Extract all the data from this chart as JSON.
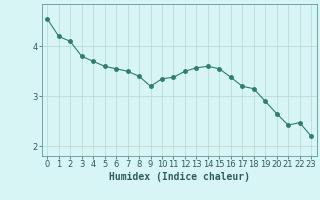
{
  "x": [
    0,
    1,
    2,
    3,
    4,
    5,
    6,
    7,
    8,
    9,
    10,
    11,
    12,
    13,
    14,
    15,
    16,
    17,
    18,
    19,
    20,
    21,
    22,
    23
  ],
  "y": [
    4.55,
    4.2,
    4.1,
    3.8,
    3.7,
    3.6,
    3.55,
    3.5,
    3.4,
    3.2,
    3.35,
    3.38,
    3.5,
    3.57,
    3.6,
    3.55,
    3.38,
    3.2,
    3.15,
    2.9,
    2.65,
    2.42,
    2.47,
    2.2
  ],
  "line_color": "#2e7d6e",
  "marker": "o",
  "marker_size": 2.5,
  "line_width": 0.8,
  "background_color": "#d8f5f5",
  "grid_color": "#b8d8d0",
  "xlabel": "Humidex (Indice chaleur)",
  "xlabel_fontsize": 7,
  "tick_fontsize": 6,
  "xlim": [
    -0.5,
    23.5
  ],
  "ylim": [
    1.8,
    4.85
  ],
  "yticks": [
    2,
    3,
    4
  ],
  "xticks": [
    0,
    1,
    2,
    3,
    4,
    5,
    6,
    7,
    8,
    9,
    10,
    11,
    12,
    13,
    14,
    15,
    16,
    17,
    18,
    19,
    20,
    21,
    22,
    23
  ]
}
